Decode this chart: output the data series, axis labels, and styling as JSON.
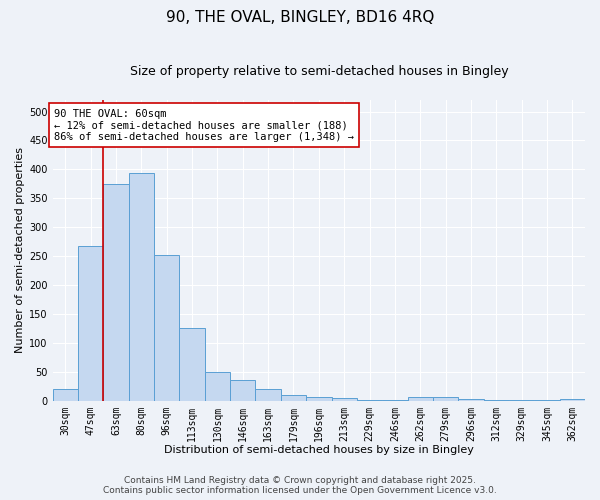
{
  "title": "90, THE OVAL, BINGLEY, BD16 4RQ",
  "subtitle": "Size of property relative to semi-detached houses in Bingley",
  "xlabel": "Distribution of semi-detached houses by size in Bingley",
  "ylabel": "Number of semi-detached properties",
  "categories": [
    "30sqm",
    "47sqm",
    "63sqm",
    "80sqm",
    "96sqm",
    "113sqm",
    "130sqm",
    "146sqm",
    "163sqm",
    "179sqm",
    "196sqm",
    "213sqm",
    "229sqm",
    "246sqm",
    "262sqm",
    "279sqm",
    "296sqm",
    "312sqm",
    "329sqm",
    "345sqm",
    "362sqm"
  ],
  "values": [
    20,
    267,
    375,
    393,
    252,
    125,
    50,
    35,
    20,
    10,
    6,
    4,
    2,
    1,
    6,
    6,
    3,
    1,
    1,
    1,
    3
  ],
  "bar_color": "#c5d8f0",
  "bar_edge_color": "#5a9fd4",
  "vline_x": 1.5,
  "vline_color": "#cc0000",
  "annotation_text": "90 THE OVAL: 60sqm\n← 12% of semi-detached houses are smaller (188)\n86% of semi-detached houses are larger (1,348) →",
  "annotation_box_color": "#cc0000",
  "ylim": [
    0,
    520
  ],
  "yticks": [
    0,
    50,
    100,
    150,
    200,
    250,
    300,
    350,
    400,
    450,
    500
  ],
  "footer_line1": "Contains HM Land Registry data © Crown copyright and database right 2025.",
  "footer_line2": "Contains public sector information licensed under the Open Government Licence v3.0.",
  "bg_color": "#eef2f8",
  "plot_bg_color": "#eef2f8",
  "title_fontsize": 11,
  "subtitle_fontsize": 9,
  "axis_label_fontsize": 8,
  "tick_fontsize": 7,
  "annotation_fontsize": 7.5,
  "footer_fontsize": 6.5
}
